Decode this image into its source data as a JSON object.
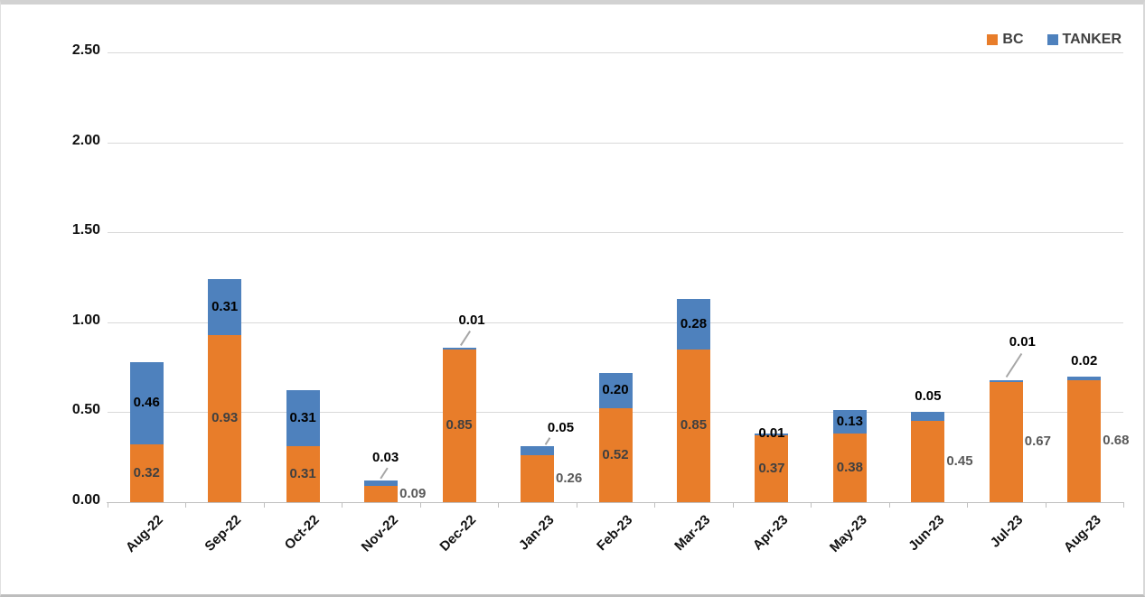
{
  "chart_data": {
    "type": "bar",
    "stacked": true,
    "title": "",
    "xlabel": "",
    "ylabel": "",
    "categories": [
      "Aug-22",
      "Sep-22",
      "Oct-22",
      "Nov-22",
      "Dec-22",
      "Jan-23",
      "Feb-23",
      "Mar-23",
      "Apr-23",
      "May-23",
      "Jun-23",
      "Jul-23",
      "Aug-23"
    ],
    "series": [
      {
        "name": "BC",
        "color": "#E87D2A",
        "values": [
          0.32,
          0.93,
          0.31,
          0.09,
          0.85,
          0.26,
          0.52,
          0.85,
          0.37,
          0.38,
          0.45,
          0.67,
          0.68
        ],
        "labels": [
          "0.32",
          "0.93",
          "0.31",
          "0.09",
          "0.85",
          "0.26",
          "0.52",
          "0.85",
          "0.37",
          "0.38",
          "0.45",
          "0.67",
          "0.68"
        ],
        "label_color": "#404040",
        "label_placements": [
          "inside",
          "inside",
          "inside",
          "right",
          "inside",
          "right",
          "inside",
          "inside",
          "inside",
          "inside",
          "right",
          "right",
          "right"
        ]
      },
      {
        "name": "TANKER",
        "color": "#4E81BD",
        "values": [
          0.46,
          0.31,
          0.31,
          0.03,
          0.01,
          0.05,
          0.2,
          0.28,
          0.01,
          0.13,
          0.05,
          0.01,
          0.02
        ],
        "labels": [
          "0.46",
          "0.31",
          "0.31",
          "0.03",
          "0.01",
          "0.05",
          "0.20",
          "0.28",
          "0.01",
          "0.13",
          "0.05",
          "0.01",
          "0.02"
        ],
        "label_color": "#000000",
        "label_placements": [
          "inside",
          "inside",
          "inside",
          "leader",
          "leader",
          "leader",
          "inside",
          "inside",
          "top",
          "inside",
          "above",
          "leader",
          "above"
        ]
      }
    ],
    "ylim": [
      0,
      2.5
    ],
    "ytick_step": 0.5,
    "ytick_labels": [
      "0.00",
      "0.50",
      "1.00",
      "1.50",
      "2.00",
      "2.50"
    ],
    "grid": true,
    "legend_position": "top-right",
    "colors": {
      "gridline": "#d9d9d9",
      "axis": "#bfbfbf",
      "leader": "#a6a6a6",
      "axis_text": "#111111",
      "legend_text": "#404040"
    }
  }
}
